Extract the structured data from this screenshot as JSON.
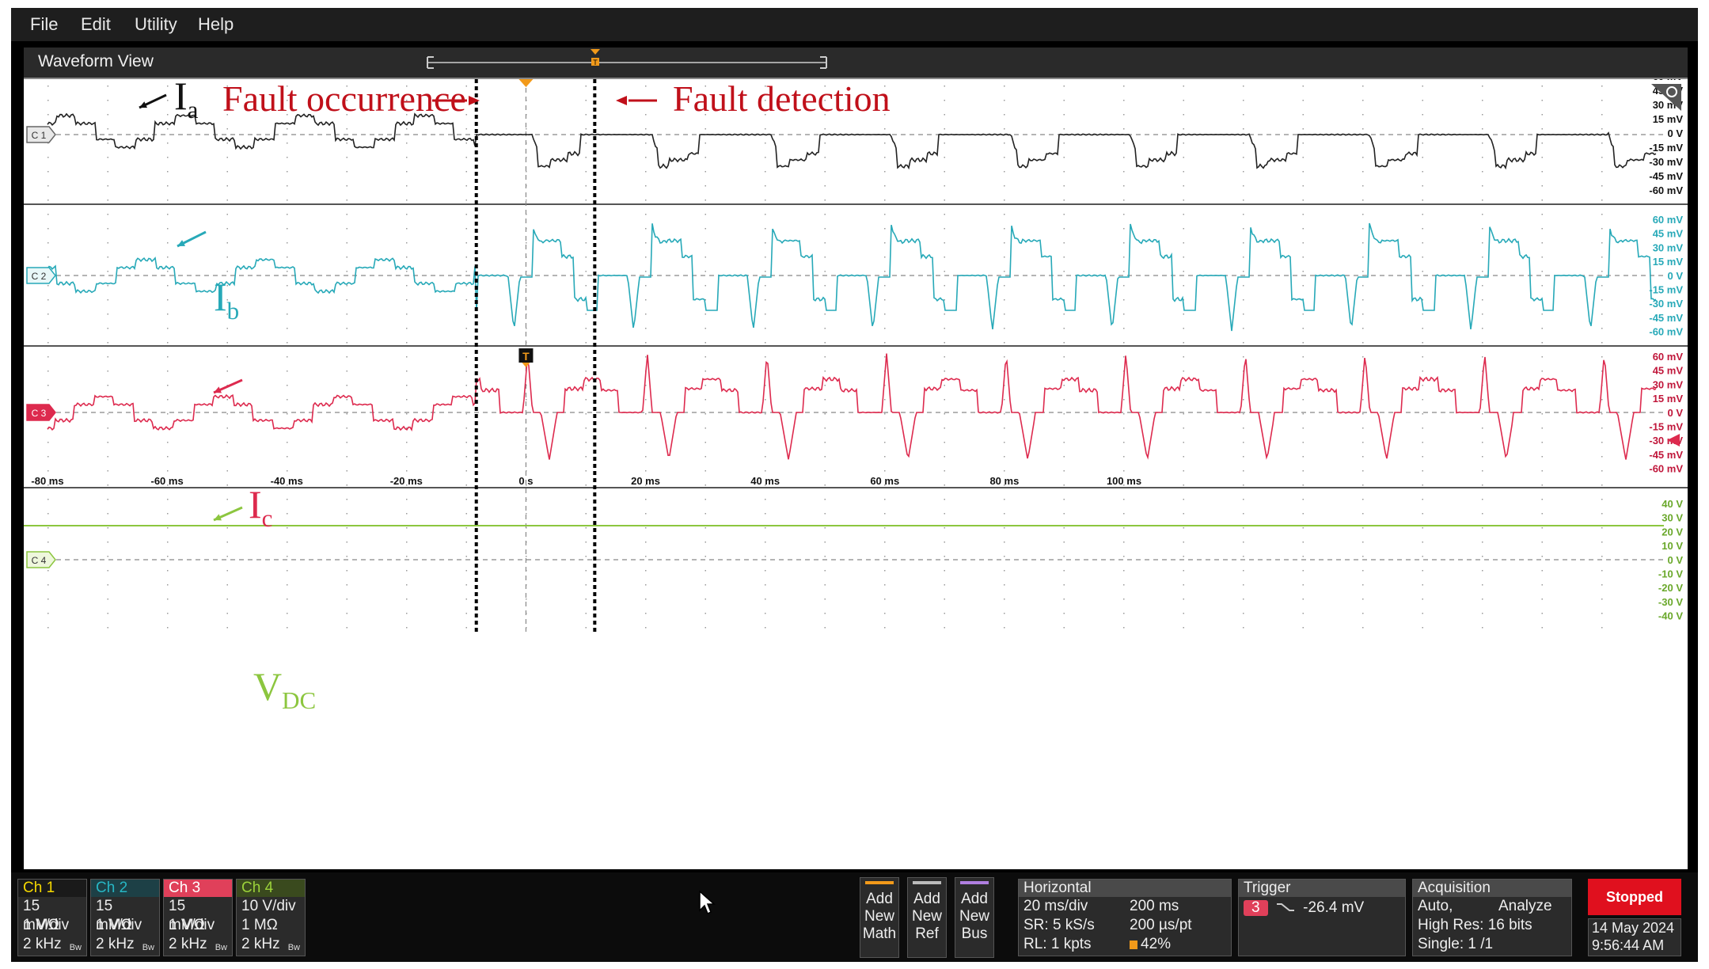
{
  "menu": [
    "File",
    "Edit",
    "Utility",
    "Help"
  ],
  "waveform_view": {
    "title": "Waveform View"
  },
  "annotations": {
    "fault_occurrence": "Fault occurrence",
    "fault_detection": "Fault detection",
    "ia": {
      "main": "I",
      "sub": "a"
    },
    "ib": {
      "main": "I",
      "sub": "b"
    },
    "ic": {
      "main": "I",
      "sub": "c"
    },
    "vdc": {
      "main": "V",
      "sub": "DC"
    }
  },
  "channel_markers": [
    "C 1",
    "C 2",
    "C 3",
    "C 4"
  ],
  "y_scales": {
    "current": [
      "60 mV",
      "45 mV",
      "30 mV",
      "15 mV",
      "0 V",
      "-15 mV",
      "-30 mV",
      "-45 mV",
      "-60 mV"
    ],
    "voltage": [
      "40 V",
      "30 V",
      "20 V",
      "10 V",
      "0 V",
      "-10 V",
      "-20 V",
      "-30 V",
      "-40 V"
    ]
  },
  "time_axis": [
    "-80 ms",
    "-60 ms",
    "-40 ms",
    "-20 ms",
    "0 s",
    "20 ms",
    "40 ms",
    "60 ms",
    "80 ms",
    "100 ms"
  ],
  "trigger_marker": "T",
  "channels": [
    {
      "name": "Ch 1",
      "scale": "15 mV/div",
      "impedance": "1 MΩ",
      "bandwidth": "2 kHz",
      "bw_tag": "Bw",
      "color": "#f5d800",
      "bg": "#1a1a1a"
    },
    {
      "name": "Ch 2",
      "scale": "15 mV/div",
      "impedance": "1 MΩ",
      "bandwidth": "2 kHz",
      "bw_tag": "Bw",
      "color": "#27b6c4",
      "bg": "#1d4046"
    },
    {
      "name": "Ch 3",
      "scale": "15 mV/div",
      "impedance": "1 MΩ",
      "bandwidth": "2 kHz",
      "bw_tag": "Bw",
      "color": "#ffffff",
      "bg": "#e0405a"
    },
    {
      "name": "Ch 4",
      "scale": "10 V/div",
      "impedance": "1 MΩ",
      "bandwidth": "2 kHz",
      "bw_tag": "Bw",
      "color": "#9bd23a",
      "bg": "#3a4a1e"
    }
  ],
  "add_buttons": [
    {
      "line1": "Add",
      "line2": "New",
      "line3": "Math",
      "color": "#f29a1a"
    },
    {
      "line1": "Add",
      "line2": "New",
      "line3": "Ref",
      "color": "#bbbbbb"
    },
    {
      "line1": "Add",
      "line2": "New",
      "line3": "Bus",
      "color": "#b07fe0"
    }
  ],
  "horizontal": {
    "title": "Horizontal",
    "scale": "20 ms/div",
    "duration": "200 ms",
    "sample_rate": "SR: 5 kS/s",
    "per_pt": "200 µs/pt",
    "record_length": "RL: 1 kpts",
    "position": "42%"
  },
  "trigger": {
    "title": "Trigger",
    "source": "3",
    "level": "-26.4 mV"
  },
  "acquisition": {
    "title": "Acquisition",
    "mode": "Auto,",
    "action": "Analyze",
    "resolution": "High Res: 16 bits",
    "single": "Single: 1 /1"
  },
  "status": {
    "state": "Stopped",
    "date": "14 May 2024",
    "time": "9:56:44 AM"
  },
  "colors": {
    "ia": "#222222",
    "ib": "#27a9b8",
    "ic": "#dd2a4e",
    "vdc": "#8cc63f",
    "annotation_red": "#c0101a"
  }
}
